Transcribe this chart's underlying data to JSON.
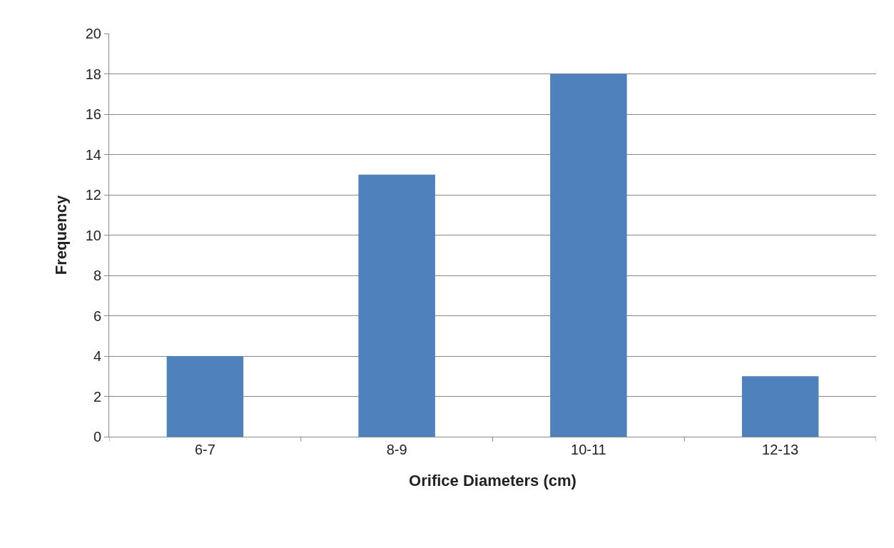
{
  "chart_data": {
    "type": "bar",
    "xlabel": "Orifice Diameters (cm)",
    "ylabel": "Frequency",
    "categories": [
      "6-7",
      "8-9",
      "10-11",
      "12-13"
    ],
    "values": [
      4,
      13,
      18,
      3
    ],
    "color": "#4f81bd",
    "ylim": [
      0,
      20
    ],
    "yticks": [
      0,
      2,
      4,
      6,
      8,
      10,
      12,
      14,
      16,
      18,
      20
    ],
    "grid": "y"
  }
}
